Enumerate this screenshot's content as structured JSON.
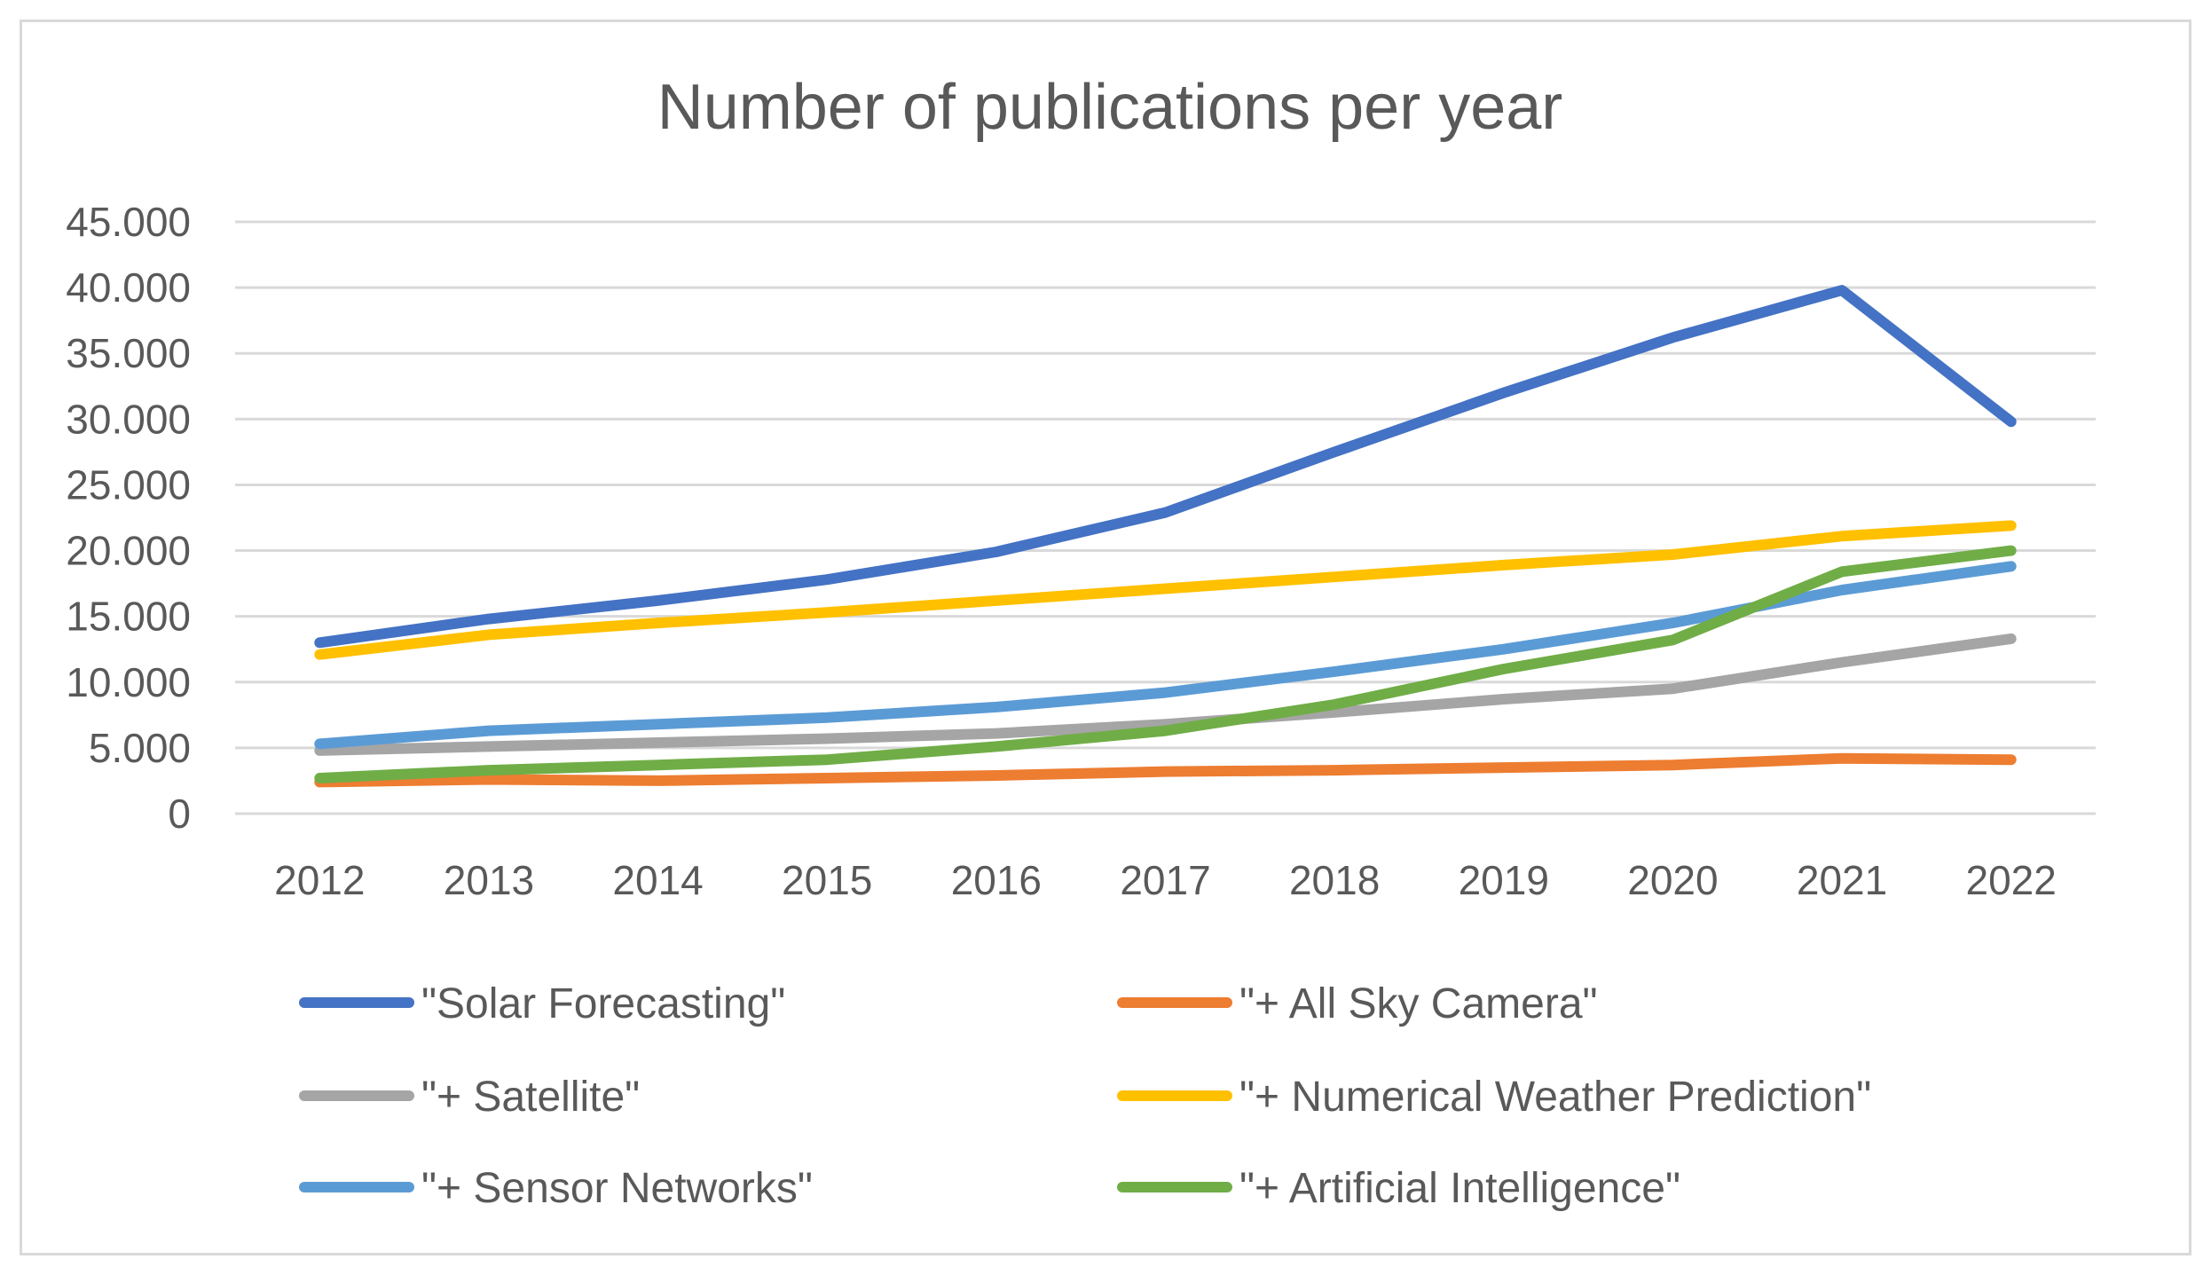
{
  "chart_data": {
    "type": "line",
    "title": "Number of publications per year",
    "xlabel": "",
    "ylabel": "",
    "ylim": [
      0,
      45000
    ],
    "grid": true,
    "legend_position": "bottom",
    "yticks": [
      {
        "value": 0,
        "label": "0"
      },
      {
        "value": 5000,
        "label": "5.000"
      },
      {
        "value": 10000,
        "label": "10.000"
      },
      {
        "value": 15000,
        "label": "15.000"
      },
      {
        "value": 20000,
        "label": "20.000"
      },
      {
        "value": 25000,
        "label": "25.000"
      },
      {
        "value": 30000,
        "label": "30.000"
      },
      {
        "value": 35000,
        "label": "35.000"
      },
      {
        "value": 40000,
        "label": "40.000"
      },
      {
        "value": 45000,
        "label": "45.000"
      }
    ],
    "categories": [
      "2012",
      "2013",
      "2014",
      "2015",
      "2016",
      "2017",
      "2018",
      "2019",
      "2020",
      "2021",
      "2022"
    ],
    "series": [
      {
        "name": "\"Solar Forecasting\"",
        "color": "#4472c4",
        "values": [
          13000,
          14800,
          16200,
          17800,
          19900,
          22900,
          27500,
          32000,
          36200,
          39800,
          29800
        ]
      },
      {
        "name": "\"+ All Sky Camera\"",
        "color": "#ed7d31",
        "values": [
          2400,
          2600,
          2500,
          2700,
          2900,
          3200,
          3300,
          3500,
          3700,
          4200,
          4100
        ]
      },
      {
        "name": "\"+ Satellite\"",
        "color": "#a5a5a5",
        "values": [
          4800,
          5100,
          5400,
          5700,
          6100,
          6800,
          7700,
          8700,
          9500,
          11500,
          13300
        ]
      },
      {
        "name": "\"+ Numerical Weather Prediction\"",
        "color": "#ffc000",
        "values": [
          12100,
          13600,
          14500,
          15300,
          16200,
          17100,
          18000,
          18900,
          19700,
          21100,
          21900
        ]
      },
      {
        "name": "\"+ Sensor Networks\"",
        "color": "#5b9bd5",
        "values": [
          5300,
          6300,
          6800,
          7300,
          8100,
          9200,
          10800,
          12500,
          14500,
          17000,
          18800
        ]
      },
      {
        "name": "\"+ Artificial Intelligence\"",
        "color": "#70ad47",
        "values": [
          2700,
          3300,
          3700,
          4100,
          5100,
          6300,
          8300,
          11000,
          13200,
          18400,
          20000
        ]
      }
    ]
  }
}
